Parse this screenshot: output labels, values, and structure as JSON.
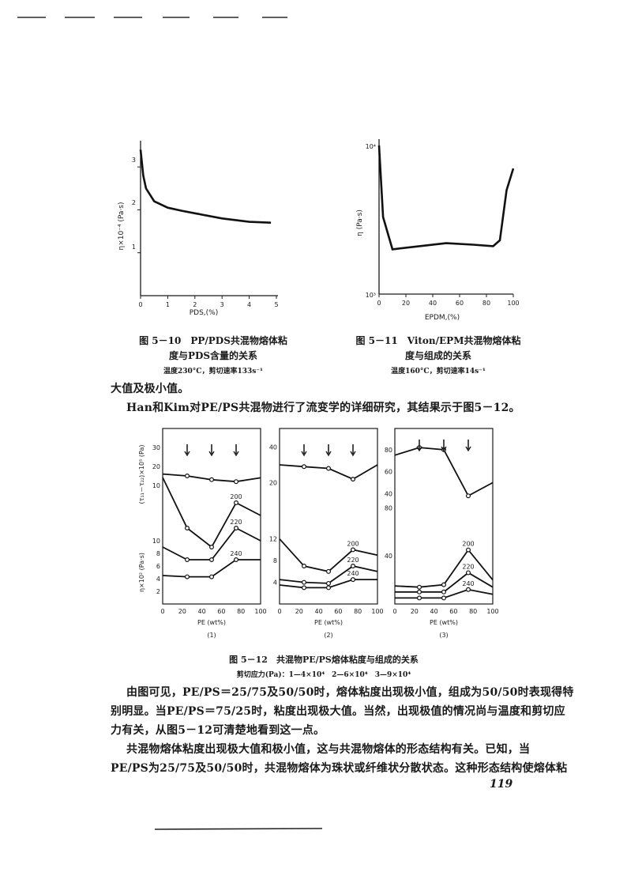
{
  "fig510": {
    "caption_line1": "图 5－10　PP/PDS共混物熔体粘",
    "caption_line2": "度与PDS含量的关系",
    "caption_note": "温度230°C，剪切速率133s⁻¹",
    "ylabel": "η×10⁻⁴ (Pa·s)",
    "xlabel": "PDS,(%)",
    "xticks": [
      "0",
      "1",
      "2",
      "3",
      "4",
      "5"
    ],
    "yticks": [
      "1",
      "2",
      "3"
    ]
  },
  "fig511": {
    "caption_line1": "图 5－11　Viton/EPM共混物熔体粘",
    "caption_line2": "度与组成的关系",
    "caption_note": "温度160°C，剪切速率14s⁻¹",
    "ylabel": "η (Pa·s)",
    "xlabel": "EPDM,(%)",
    "xticks": [
      "0",
      "20",
      "40",
      "60",
      "80",
      "100"
    ],
    "ytick_top": "10⁴",
    "ytick_bottom": "10³"
  },
  "text": {
    "line1": "大值及极小值。",
    "line2": "Han和Kim对PE/PS共混物进行了流变学的详细研究，其结果示于图5－12。",
    "para2_l1": "由图可见，PE/PS＝25/75及50/50时，熔体粘度出现极小值，组成为50/50时表现得特",
    "para2_l2": "别明显。当PE/PS＝75/25时，粘度出现极大值。当然，出现极值的情况尚与温度和剪切应",
    "para2_l3": "力有关，从图5－12可清楚地看到这一点。",
    "para3_l1": "共混物熔体粘度出现极大值和极小值，这与共混物熔体的形态结构有关。已知，当",
    "para3_l2": "PE/PS为25/75及50/50时，共混物熔体为珠状或纤维状分散状态。这种形态结构使熔体粘",
    "page_number": "119"
  },
  "fig512": {
    "caption": "图 5－12　共混物PE/PS熔体粘度与组成的关系",
    "note": "剪切应力(Pa)：1—4×10⁴　2—6×10⁴　3—9×10⁴",
    "xlabel": "PE (wt%)",
    "xticks": [
      "0",
      "20",
      "40",
      "60",
      "80",
      "100"
    ],
    "ylabel_top": "(τ₁₁－τ₂₂)×10⁵ (Pa)",
    "ylabel_bottom": "η×10² (Pa·s)",
    "panel_labels": [
      "(1)",
      "(2)",
      "(3)"
    ],
    "temps": [
      "200",
      "220",
      "240"
    ],
    "p1_yticks_top": [
      "30",
      "20",
      "10"
    ],
    "p1_yticks_bottom": [
      "10",
      "8",
      "6",
      "4",
      "2"
    ],
    "p2_yticks_top": [
      "40",
      "20"
    ],
    "p2_yticks_bottom": [
      "12",
      "8",
      "4"
    ],
    "p3_yticks_top": [
      "80",
      "60",
      "40"
    ],
    "p3_yticks_bottom": [
      "80",
      "40"
    ]
  },
  "chart_data": [
    {
      "type": "line",
      "title": "图 5－10　PP/PDS共混物熔体粘度与PDS含量的关系",
      "xlabel": "PDS,(%)",
      "ylabel": "η×10⁻⁴ (Pa·s)",
      "xlim": [
        0,
        5
      ],
      "ylim": [
        0,
        3.5
      ],
      "x": [
        0,
        0.1,
        0.2,
        0.5,
        1,
        1.5,
        2,
        3,
        4,
        4.8
      ],
      "values": [
        3.4,
        2.8,
        2.5,
        2.2,
        2.05,
        1.98,
        1.92,
        1.8,
        1.72,
        1.7
      ]
    },
    {
      "type": "line",
      "title": "图 5－11　Viton/EPM共混物熔体粘度与组成的关系",
      "xlabel": "EPDM,(%)",
      "ylabel": "η (Pa·s)",
      "xlim": [
        0,
        100
      ],
      "yscale": "log",
      "ylim": [
        1000,
        10000
      ],
      "x": [
        0,
        3,
        10,
        30,
        50,
        70,
        85,
        90,
        95,
        100
      ],
      "values": [
        10000,
        3300,
        2000,
        2100,
        2200,
        2150,
        2100,
        2300,
        5000,
        7000
      ]
    },
    {
      "type": "line",
      "title": "图 5－12 (1) 剪切应力 4×10⁴ Pa",
      "xlabel": "PE (wt%)",
      "x": [
        0,
        25,
        50,
        75,
        100
      ],
      "series": [
        {
          "name": "(τ₁₁－τ₂₂)",
          "values": [
            16,
            15,
            13,
            12,
            14
          ]
        },
        {
          "name": "200",
          "values": [
            20,
            12,
            9,
            16,
            14
          ]
        },
        {
          "name": "220",
          "values": [
            9,
            7,
            7,
            12,
            10
          ]
        },
        {
          "name": "240",
          "values": [
            4.5,
            4.3,
            4.3,
            7,
            7
          ]
        }
      ]
    },
    {
      "type": "line",
      "title": "图 5－12 (2) 剪切应力 6×10⁴ Pa",
      "xlabel": "PE (wt%)",
      "x": [
        0,
        25,
        50,
        75,
        100
      ],
      "series": [
        {
          "name": "(τ₁₁－τ₂₂)",
          "values": [
            30,
            29,
            28,
            22,
            30
          ]
        },
        {
          "name": "200",
          "values": [
            12,
            7,
            6,
            10,
            9
          ]
        },
        {
          "name": "220",
          "values": [
            4.5,
            4,
            3.8,
            7,
            6
          ]
        },
        {
          "name": "240",
          "values": [
            3.5,
            3,
            3,
            4.5,
            4.5
          ]
        }
      ]
    },
    {
      "type": "line",
      "title": "图 5－12 (3) 剪切应力 9×10⁴ Pa",
      "xlabel": "PE (wt%)",
      "x": [
        0,
        25,
        50,
        75,
        100
      ],
      "series": [
        {
          "name": "(τ₁₁－τ₂₂)",
          "values": [
            75,
            82,
            80,
            38,
            50
          ]
        },
        {
          "name": "200",
          "values": [
            15,
            14,
            16,
            45,
            20
          ]
        },
        {
          "name": "220",
          "values": [
            10,
            10,
            10,
            26,
            14
          ]
        },
        {
          "name": "240",
          "values": [
            5,
            5,
            5,
            12,
            8
          ]
        }
      ]
    }
  ]
}
